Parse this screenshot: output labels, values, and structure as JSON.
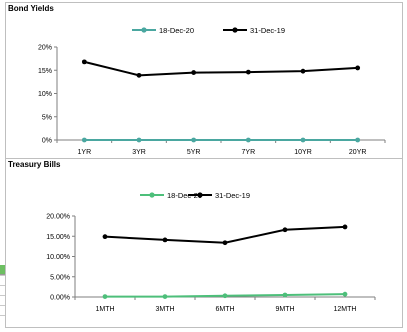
{
  "chart_data": [
    {
      "type": "line",
      "title": "Bond Yields",
      "categories": [
        "1YR",
        "3YR",
        "5YR",
        "7YR",
        "10YR",
        "20YR"
      ],
      "series": [
        {
          "name": "18-Dec-20",
          "color": "#4aa7a0",
          "values": [
            0.0,
            0.0,
            0.0,
            0.0,
            0.0,
            0.0
          ]
        },
        {
          "name": "31-Dec-19",
          "color": "#000000",
          "values": [
            16.8,
            13.9,
            14.5,
            14.6,
            14.8,
            15.5
          ]
        }
      ],
      "ylim": [
        0,
        20
      ],
      "yticks": [
        "0%",
        "5%",
        "10%",
        "15%",
        "20%"
      ],
      "legend": "top-center",
      "grid": false
    },
    {
      "type": "line",
      "title": "Treasury  Bills",
      "categories": [
        "1MTH",
        "3MTH",
        "6MTH",
        "9MTH",
        "12MTH"
      ],
      "series": [
        {
          "name": "18-Dec-20",
          "color": "#4dbf7a",
          "values": [
            0.1,
            0.1,
            0.3,
            0.5,
            0.7
          ]
        },
        {
          "name": "31-Dec-19",
          "color": "#000000",
          "values": [
            14.9,
            14.1,
            13.4,
            16.6,
            17.3
          ]
        }
      ],
      "ylim": [
        0,
        20
      ],
      "yticks": [
        "0.00%",
        "5.00%",
        "10.00%",
        "15.00%",
        "20.00%"
      ],
      "legend": "top-center",
      "grid": false
    }
  ]
}
